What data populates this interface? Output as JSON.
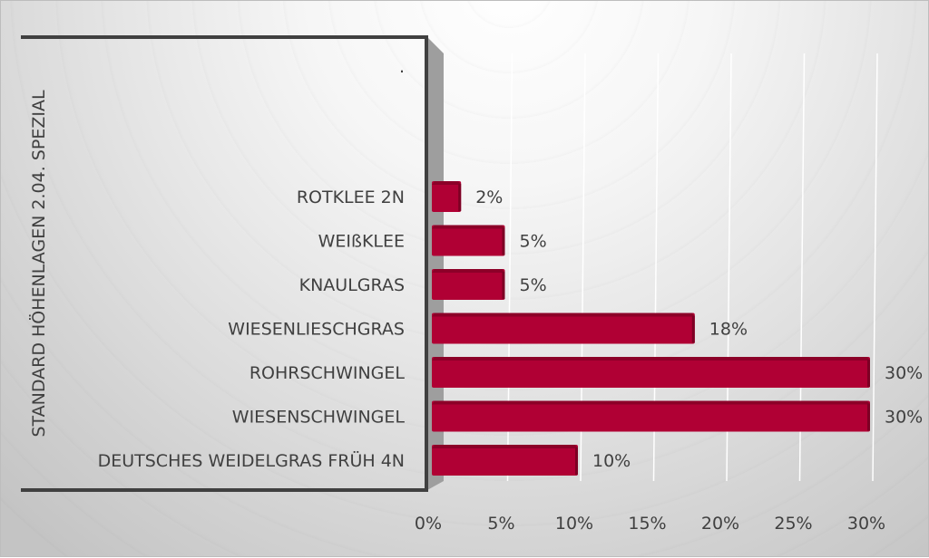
{
  "chart_data": {
    "type": "bar",
    "orientation": "horizontal",
    "title": "",
    "ylabel": "STANDARD HÖHENLAGEN 2.04. SPEZIAL",
    "xlabel": "",
    "categories": [
      "DEUTSCHES WEIDELGRAS FRÜH 4N",
      "WIESENSCHWINGEL",
      "ROHRSCHWINGEL",
      "WIESENLIESCHGRAS",
      "KNAULGRAS",
      "WEIßKLEE",
      "ROTKLEE 2N",
      "."
    ],
    "values": [
      10,
      30,
      30,
      18,
      5,
      5,
      2,
      null
    ],
    "data_labels": [
      "10%",
      "30%",
      "30%",
      "18%",
      "5%",
      "5%",
      "2%",
      ""
    ],
    "xlim": [
      0,
      30
    ],
    "x_ticks": [
      "0%",
      "5%",
      "10%",
      "15%",
      "20%",
      "25%",
      "30%"
    ],
    "grid": true,
    "legend": "none",
    "bar_color": "#b00034",
    "bar_dark": "#7d0024"
  }
}
